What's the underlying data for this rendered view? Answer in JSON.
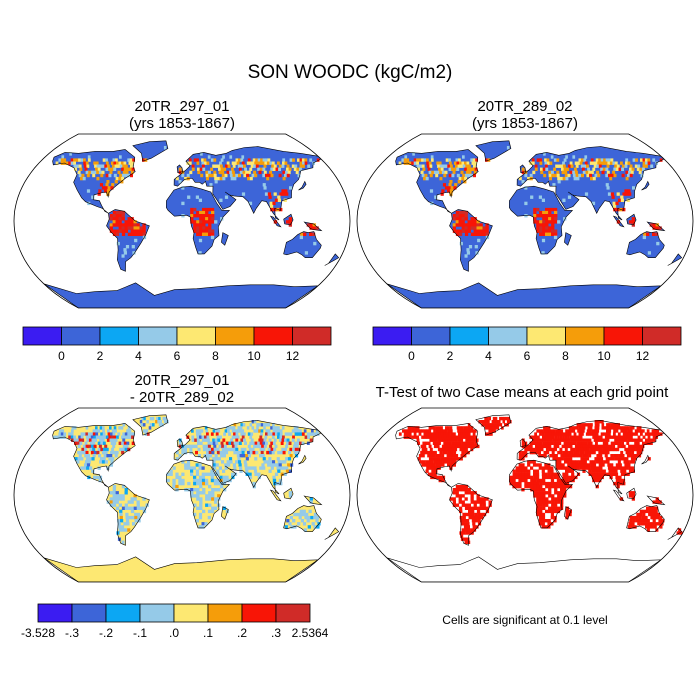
{
  "figure": {
    "title": "SON WOODC (kgC/m2)"
  },
  "panels": [
    {
      "id": "case1",
      "title_line1": "20TR_297_01",
      "title_line2": "(yrs 1853-1867)",
      "kind": "field"
    },
    {
      "id": "case2",
      "title_line1": "20TR_289_02",
      "title_line2": "(yrs 1853-1867)",
      "kind": "field"
    },
    {
      "id": "difference",
      "title_line1": "20TR_297_01",
      "title_line2": "- 20TR_289_02",
      "kind": "difference"
    },
    {
      "id": "ttest",
      "title_line1": "T-Test of two Case means at each grid point",
      "title_line2": "",
      "kind": "ttest",
      "note": "Cells are significant at 0.1 level"
    }
  ],
  "colorbars": {
    "field": {
      "colors": [
        "#3b1cf2",
        "#3d65d8",
        "#0ca7f3",
        "#95cae8",
        "#fde872",
        "#f59d0a",
        "#f81506",
        "#d02b28"
      ],
      "labels": [
        "0",
        "2",
        "4",
        "6",
        "8",
        "10",
        "12"
      ]
    },
    "difference": {
      "colors": [
        "#3b1cf2",
        "#3d65d8",
        "#0ca7f3",
        "#95cae8",
        "#fde872",
        "#f59d0a",
        "#f81506",
        "#d02b28"
      ],
      "labels": [
        "-3.528",
        "-.3",
        "-.2",
        "-.1",
        ".0",
        ".1",
        ".2",
        ".3",
        "2.5364"
      ]
    }
  },
  "map_colors": {
    "ocean": "#ffffff",
    "land_field": "#3d65d8",
    "land_diff": "#fde872",
    "ttest_mark": "#f81506",
    "coast": "#000000"
  }
}
